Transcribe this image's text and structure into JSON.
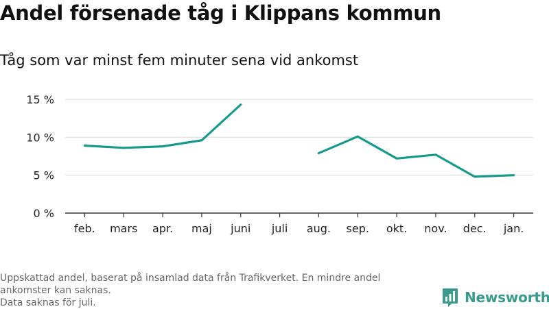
{
  "title": "Andel försenade tåg i Klippans kommun",
  "subtitle": "Tåg som var minst fem minuter sena vid ankomst",
  "footnote_lines": [
    "Uppskattad andel, baserat på insamlad data från Trafikverket. En mindre andel ankomster kan saknas.",
    "Data saknas för juli."
  ],
  "brand": {
    "name": "Newsworthy",
    "color": "#3a9a8e"
  },
  "colors": {
    "line": "#159a8c",
    "grid": "#dddddd",
    "axis": "#333333"
  },
  "chart_data": {
    "type": "line",
    "categories": [
      "feb.",
      "mars",
      "apr.",
      "maj",
      "juni",
      "juli",
      "aug.",
      "sep.",
      "okt.",
      "nov.",
      "dec.",
      "jan."
    ],
    "values": [
      8.9,
      8.6,
      8.8,
      9.6,
      14.3,
      null,
      7.9,
      10.1,
      7.2,
      7.7,
      4.8,
      5.0
    ],
    "ylim": [
      0,
      15
    ],
    "yticks": [
      0,
      5,
      10,
      15
    ],
    "ytick_labels": [
      "0 %",
      "5 %",
      "10 %",
      "15 %"
    ],
    "grid": true
  }
}
